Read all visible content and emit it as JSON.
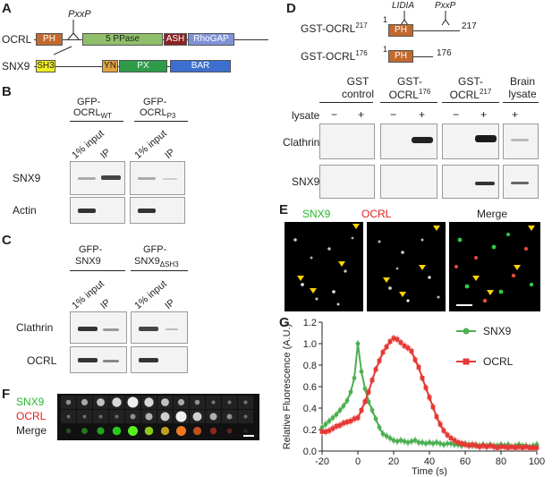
{
  "panels": {
    "A": "A",
    "B": "B",
    "C": "C",
    "D": "D",
    "E": "E",
    "F": "F",
    "G": "G"
  },
  "A": {
    "protein1": "OCRL",
    "protein2": "SNX9",
    "motif": "PxxP",
    "ocrl_domains": [
      {
        "name": "PH",
        "color": "#c26a2e"
      },
      {
        "name": "5 PPase",
        "color": "#8fbf6a"
      },
      {
        "name": "ASH",
        "color": "#8b2323"
      },
      {
        "name": "RhoGAP",
        "color": "#7f93d6"
      }
    ],
    "snx9_domains": [
      {
        "name": "SH3",
        "color": "#eeee22"
      },
      {
        "name": "YN",
        "color": "#e0a23a"
      },
      {
        "name": "PX",
        "color": "#2f9a4a"
      },
      {
        "name": "BAR",
        "color": "#3d6fd1"
      }
    ]
  },
  "B": {
    "col1_title": "GFP-",
    "col1_name": "OCRL",
    "col1_sub": "WT",
    "col2_title": "GFP-",
    "col2_name": "OCRL",
    "col2_sub": "P3",
    "lanes": [
      "1% input",
      "IP",
      "1% input",
      "IP"
    ],
    "rows": [
      "SNX9",
      "Actin"
    ]
  },
  "C": {
    "col1_title": "GFP-",
    "col1_name": "SNX9",
    "col2_title": "GFP-",
    "col2_name": "SNX9",
    "col2_sub": "ΔSH3",
    "lanes": [
      "1% input",
      "IP",
      "1% input",
      "IP"
    ],
    "rows": [
      "Clathrin",
      "OCRL"
    ]
  },
  "D": {
    "construct1": "GST-OCRL",
    "construct1_sup": "217",
    "construct2": "GST-OCRL",
    "construct2_sup": "176",
    "motif1": "LIDIA",
    "motif2": "PxxP",
    "start": "1",
    "end1": "217",
    "end2": "176",
    "domain": "PH",
    "groups": [
      {
        "line1": "GST",
        "line2": "control",
        "sup": ""
      },
      {
        "line1": "GST-",
        "line2": "OCRL",
        "sup": "176"
      },
      {
        "line1": "GST-",
        "line2": "OCRL",
        "sup": "217"
      },
      {
        "line1": "Brain",
        "line2": "lysate",
        "sup": ""
      }
    ],
    "lysate_label": "lysate",
    "signs": [
      "−",
      "+",
      "−",
      "+",
      "−",
      "+",
      "+"
    ],
    "rows": [
      "Clathrin",
      "SNX9"
    ]
  },
  "E": {
    "labels": [
      "SNX9",
      "OCRL",
      "Merge"
    ],
    "colors": [
      "#2db82d",
      "#e02020",
      "#222222"
    ]
  },
  "F": {
    "labels": [
      "SNX9",
      "OCRL",
      "Merge"
    ],
    "colors": [
      "#2db82d",
      "#e02020",
      "#222222"
    ]
  },
  "chart_data": {
    "type": "line",
    "xlabel": "Time (s)",
    "ylabel": "Relative Fluorescence (A.U.)",
    "xlim": [
      -20,
      100
    ],
    "ylim": [
      0,
      1.2
    ],
    "xticks": [
      -20,
      0,
      20,
      40,
      60,
      80,
      100
    ],
    "yticks": [
      0,
      0.2,
      0.4,
      0.6,
      0.8,
      1.0,
      1.2
    ],
    "legend_position": "top-right",
    "series": [
      {
        "name": "SNX9",
        "color": "#4caf50",
        "marker": "circle",
        "x": [
          -20,
          -18,
          -16,
          -14,
          -12,
          -10,
          -8,
          -6,
          -4,
          -2,
          0,
          2,
          4,
          6,
          8,
          10,
          12,
          14,
          16,
          18,
          20,
          22,
          24,
          26,
          28,
          30,
          32,
          34,
          36,
          38,
          40,
          42,
          44,
          46,
          48,
          50,
          52,
          54,
          56,
          58,
          60,
          62,
          64,
          66,
          68,
          70,
          72,
          74,
          76,
          78,
          80,
          82,
          84,
          86,
          88,
          90,
          92,
          94,
          96,
          98,
          100
        ],
        "y": [
          0.22,
          0.25,
          0.28,
          0.31,
          0.34,
          0.38,
          0.42,
          0.47,
          0.55,
          0.68,
          1.0,
          0.74,
          0.58,
          0.46,
          0.38,
          0.3,
          0.22,
          0.16,
          0.14,
          0.12,
          0.1,
          0.09,
          0.1,
          0.09,
          0.08,
          0.09,
          0.1,
          0.08,
          0.08,
          0.07,
          0.08,
          0.07,
          0.08,
          0.07,
          0.06,
          0.07,
          0.07,
          0.06,
          0.06,
          0.05,
          0.07,
          0.06,
          0.05,
          0.06,
          0.05,
          0.06,
          0.05,
          0.06,
          0.05,
          0.05,
          0.06,
          0.05,
          0.06,
          0.04,
          0.05,
          0.06,
          0.05,
          0.05,
          0.04,
          0.05,
          0.06
        ]
      },
      {
        "name": "OCRL",
        "color": "#e53935",
        "marker": "square",
        "x": [
          -20,
          -18,
          -16,
          -14,
          -12,
          -10,
          -8,
          -6,
          -4,
          -2,
          0,
          2,
          4,
          6,
          8,
          10,
          12,
          14,
          16,
          18,
          20,
          22,
          24,
          26,
          28,
          30,
          32,
          34,
          36,
          38,
          40,
          42,
          44,
          46,
          48,
          50,
          52,
          54,
          56,
          58,
          60,
          62,
          64,
          66,
          68,
          70,
          72,
          74,
          76,
          78,
          80,
          82,
          84,
          86,
          88,
          90,
          92,
          94,
          96,
          98,
          100
        ],
        "y": [
          0.18,
          0.18,
          0.19,
          0.21,
          0.23,
          0.24,
          0.26,
          0.27,
          0.28,
          0.3,
          0.31,
          0.38,
          0.46,
          0.55,
          0.66,
          0.76,
          0.84,
          0.92,
          0.97,
          1.02,
          1.05,
          1.04,
          1.01,
          0.98,
          0.96,
          0.93,
          0.85,
          0.78,
          0.68,
          0.59,
          0.5,
          0.41,
          0.32,
          0.25,
          0.19,
          0.15,
          0.12,
          0.1,
          0.08,
          0.07,
          0.06,
          0.05,
          0.06,
          0.05,
          0.04,
          0.05,
          0.04,
          0.05,
          0.04,
          0.03,
          0.04,
          0.04,
          0.03,
          0.04,
          0.03,
          0.04,
          0.03,
          0.04,
          0.03,
          0.03,
          0.03
        ]
      }
    ]
  }
}
